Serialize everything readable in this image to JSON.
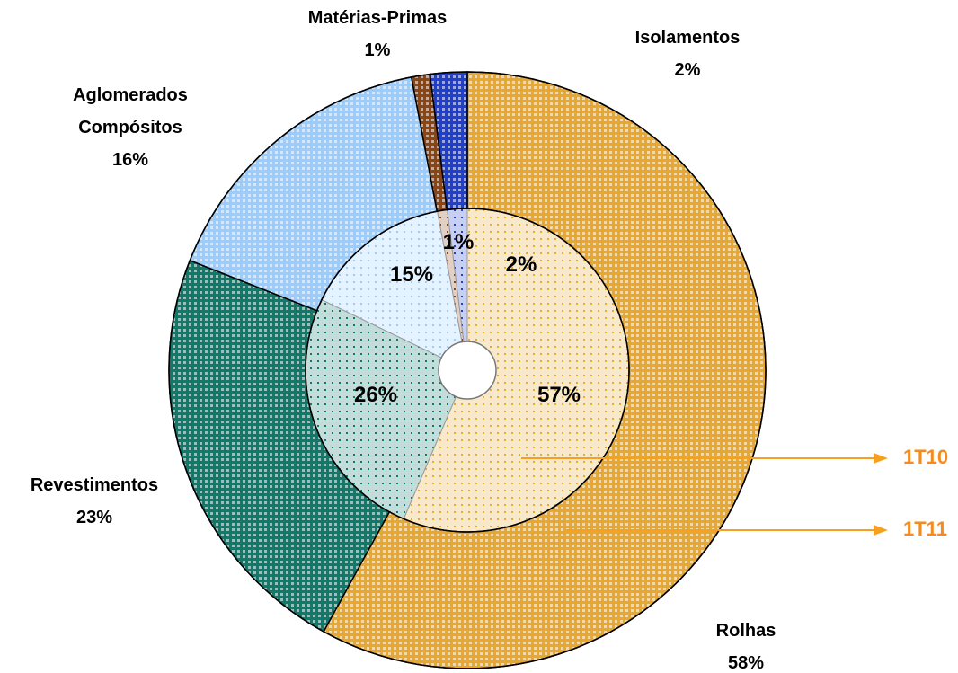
{
  "chart_data": {
    "type": "donut",
    "categories": [
      "Rolhas",
      "Revestimentos",
      "Aglomerados Compósitos",
      "Matérias-Primas",
      "Isolamentos"
    ],
    "colors": [
      "#e8a830",
      "#0f7a6a",
      "#99ccff",
      "#8b4513",
      "#1f3fcc"
    ],
    "series": [
      {
        "name": "1T10",
        "values": [
          57,
          26,
          15,
          1,
          2
        ],
        "value_labels": [
          "57%",
          "26%",
          "15%",
          "1%",
          "2%"
        ]
      },
      {
        "name": "1T11",
        "values": [
          58,
          23,
          16,
          1,
          2
        ],
        "value_labels": [
          "58%",
          "23%",
          "16%",
          "1%",
          "2%"
        ]
      }
    ]
  }
}
